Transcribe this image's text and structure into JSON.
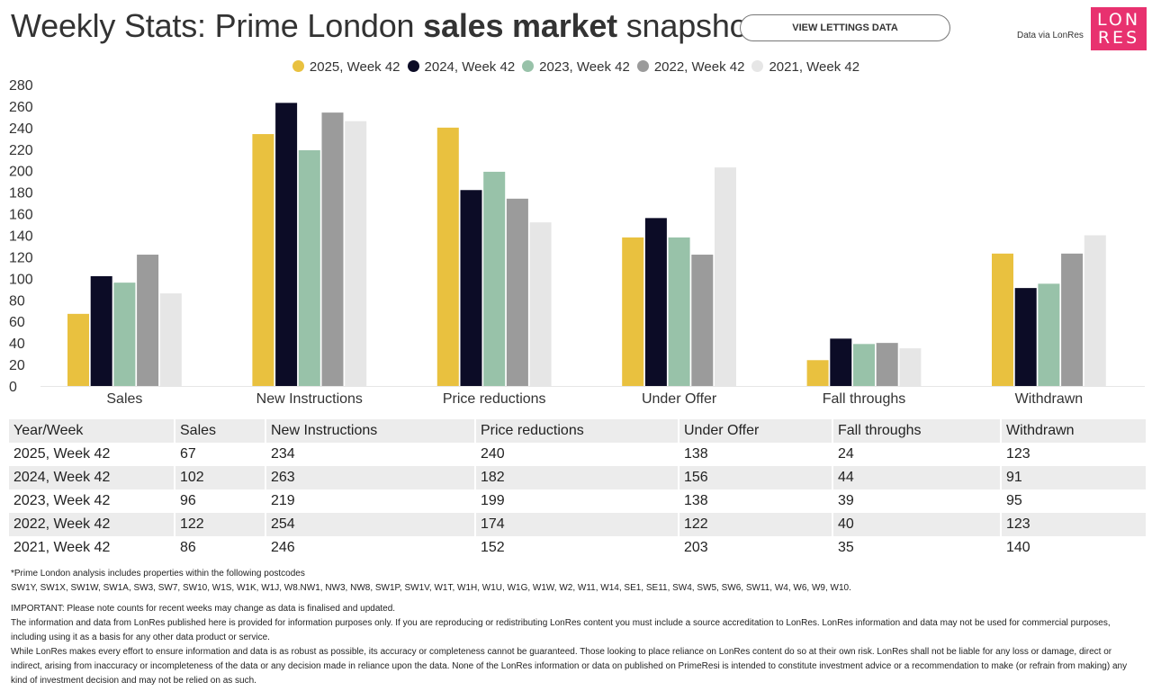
{
  "header": {
    "title_part1": "Weekly Stats: Prime London",
    "title_bold": "sales market",
    "title_part2": "snapshot",
    "lettings_button": "VIEW LETTINGS DATA",
    "data_via": "Data via LonRes",
    "logo_line1": "LON",
    "logo_line2": "RES"
  },
  "chart_data": {
    "type": "bar",
    "title": "Weekly Stats: Prime London sales market snapshot",
    "xlabel": "",
    "ylabel": "",
    "ylim": [
      0,
      280
    ],
    "yticks": [
      0,
      20,
      40,
      60,
      80,
      100,
      120,
      140,
      160,
      180,
      200,
      220,
      240,
      260,
      280
    ],
    "legend_position": "top",
    "grid": false,
    "categories": [
      "Sales",
      "New Instructions",
      "Price reductions",
      "Under Offer",
      "Fall throughs",
      "Withdrawn"
    ],
    "series": [
      {
        "name": "2025, Week 42",
        "color": "#e9c13f",
        "values": [
          67,
          234,
          240,
          138,
          24,
          123
        ]
      },
      {
        "name": "2024, Week 42",
        "color": "#0c0c26",
        "values": [
          102,
          263,
          182,
          156,
          44,
          91
        ]
      },
      {
        "name": "2023, Week 42",
        "color": "#98c2a9",
        "values": [
          96,
          219,
          199,
          138,
          39,
          95
        ]
      },
      {
        "name": "2022, Week 42",
        "color": "#9b9b9b",
        "values": [
          122,
          254,
          174,
          122,
          40,
          123
        ]
      },
      {
        "name": "2021, Week 42",
        "color": "#e6e6e6",
        "values": [
          86,
          246,
          152,
          203,
          35,
          140
        ]
      }
    ]
  },
  "table": {
    "headers": [
      "Year/Week",
      "Sales",
      "New Instructions",
      "Price reductions",
      "Under Offer",
      "Fall throughs",
      "Withdrawn"
    ],
    "rows": [
      [
        "2025, Week 42",
        "67",
        "234",
        "240",
        "138",
        "24",
        "123"
      ],
      [
        "2024, Week 42",
        "102",
        "263",
        "182",
        "156",
        "44",
        "91"
      ],
      [
        "2023, Week 42",
        "96",
        "219",
        "199",
        "138",
        "39",
        "95"
      ],
      [
        "2022, Week 42",
        "122",
        "254",
        "174",
        "122",
        "40",
        "123"
      ],
      [
        "2021, Week 42",
        "86",
        "246",
        "152",
        "203",
        "35",
        "140"
      ]
    ]
  },
  "footnote": {
    "line1": "*Prime London analysis includes properties within the following postcodes",
    "line2": "SW1Y, SW1X, SW1W, SW1A, SW3, SW7, SW10, W1S, W1K, W1J, W8.NW1, NW3, NW8, SW1P, SW1V, W1T, W1H, W1U, W1G, W1W, W2, W11, W14, SE1, SE11, SW4, SW5, SW6, SW11, W4, W6, W9, W10.",
    "line3": "IMPORTANT: Please note counts for recent weeks may change as data is finalised and updated.",
    "line4": "The information and data from LonRes published here is provided for information purposes only. If you are reproducing or redistributing LonRes content you must include a source accreditation to LonRes. LonRes information and data may not be used for commercial purposes, including using it as a basis for any other data product or service.",
    "line5": "While LonRes makes every effort to ensure information and data is as robust as possible, its accuracy or completeness cannot be guaranteed. Those looking to place reliance on LonRes content do so at their own risk. LonRes shall not be liable for any loss or damage, direct or indirect, arising from inaccuracy or incompleteness of the data or any decision made in reliance upon the data. None of the LonRes information or data on published on PrimeResi is intended to constitute investment advice or a recommendation to make (or refrain from making) any kind of investment decision and may not be relied on as such."
  }
}
